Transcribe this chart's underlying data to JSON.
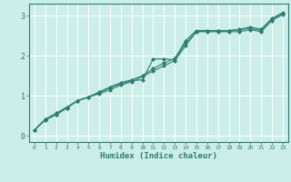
{
  "xlabel": "Humidex (Indice chaleur)",
  "xlim": [
    -0.5,
    23.5
  ],
  "ylim": [
    -0.15,
    3.3
  ],
  "xticks": [
    0,
    1,
    2,
    3,
    4,
    5,
    6,
    7,
    8,
    9,
    10,
    11,
    12,
    13,
    14,
    15,
    16,
    17,
    18,
    19,
    20,
    21,
    22,
    23
  ],
  "yticks": [
    0,
    1,
    2,
    3
  ],
  "bg_color": "#cceee8",
  "plot_bg": "#cceee8",
  "line_color": "#2d7d72",
  "grid_color": "#ffffff",
  "line1_y": [
    0.15,
    0.42,
    0.57,
    0.72,
    0.88,
    0.97,
    1.05,
    1.15,
    1.27,
    1.35,
    1.48,
    1.62,
    1.75,
    1.88,
    2.25,
    2.6,
    2.62,
    2.62,
    2.62,
    2.65,
    2.68,
    2.63,
    2.9,
    3.05
  ],
  "line2_y": [
    0.15,
    0.4,
    0.53,
    0.7,
    0.88,
    0.97,
    1.08,
    1.2,
    1.3,
    1.38,
    1.4,
    1.92,
    1.92,
    1.9,
    2.32,
    2.6,
    2.6,
    2.6,
    2.6,
    2.6,
    2.65,
    2.6,
    2.88,
    3.03
  ],
  "line3_y": [
    0.15,
    0.4,
    0.53,
    0.7,
    0.88,
    0.97,
    1.1,
    1.22,
    1.33,
    1.4,
    1.5,
    1.68,
    1.82,
    1.93,
    2.38,
    2.63,
    2.63,
    2.63,
    2.63,
    2.66,
    2.72,
    2.66,
    2.93,
    3.08
  ]
}
